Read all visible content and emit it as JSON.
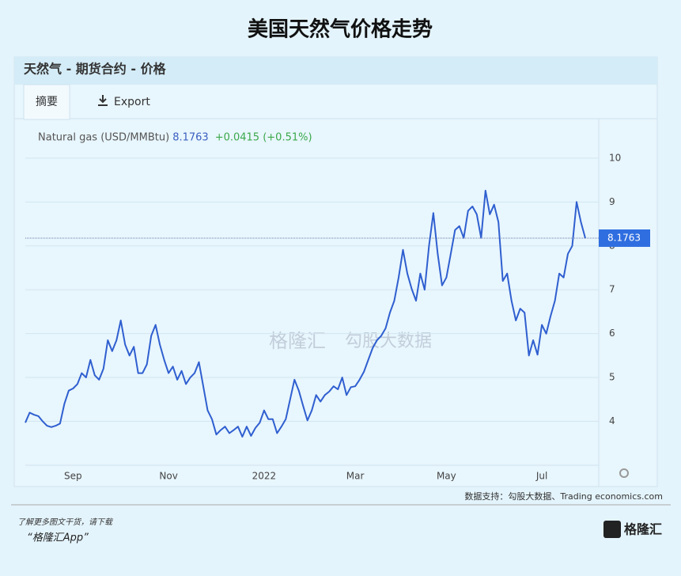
{
  "header": {
    "title": "美国天然气价格走势",
    "panel_title": "天然气 - 期货合约 - 价格",
    "tabs": [
      "摘要",
      "Export"
    ]
  },
  "chart_data": {
    "type": "line",
    "categories": [
      null,
      null,
      null,
      null,
      null,
      null,
      null,
      null,
      null,
      null,
      null,
      "Sep",
      null,
      null,
      null,
      null,
      null,
      null,
      null,
      null,
      null,
      null,
      null,
      null,
      null,
      null,
      null,
      null,
      null,
      null,
      null,
      null,
      null,
      "Nov",
      null,
      null,
      null,
      null,
      null,
      null,
      null,
      null,
      null,
      null,
      null,
      null,
      null,
      null,
      null,
      null,
      null,
      null,
      null,
      null,
      null,
      "2022",
      null,
      null,
      null,
      null,
      null,
      null,
      null,
      null,
      null,
      null,
      null,
      null,
      null,
      null,
      null,
      null,
      null,
      null,
      null,
      null,
      "Mar",
      null,
      null,
      null,
      null,
      null,
      null,
      null,
      null,
      null,
      null,
      null,
      null,
      null,
      null,
      null,
      null,
      null,
      null,
      null,
      null,
      "May",
      null,
      null,
      null,
      null,
      null,
      null,
      null,
      null,
      null,
      null,
      null,
      null,
      null,
      null,
      null,
      null,
      null,
      null,
      null,
      null,
      null,
      "Jul",
      null,
      null,
      null,
      null,
      null,
      null,
      null,
      null,
      null,
      null
    ],
    "series": [
      {
        "name": "Natural gas (USD/MMBtu)",
        "color": "#2f5fd0",
        "values": [
          3.97,
          4.2,
          4.15,
          4.12,
          4.0,
          3.9,
          3.87,
          3.9,
          3.95,
          4.4,
          4.7,
          4.75,
          4.85,
          5.1,
          5.0,
          5.4,
          5.05,
          4.95,
          5.2,
          5.85,
          5.6,
          5.85,
          6.3,
          5.75,
          5.5,
          5.7,
          5.1,
          5.1,
          5.3,
          5.95,
          6.2,
          5.75,
          5.4,
          5.1,
          5.25,
          4.95,
          5.15,
          4.85,
          5.0,
          5.1,
          5.35,
          4.8,
          4.25,
          4.05,
          3.7,
          3.8,
          3.88,
          3.73,
          3.8,
          3.88,
          3.65,
          3.88,
          3.67,
          3.85,
          3.97,
          4.25,
          4.05,
          4.05,
          3.73,
          3.88,
          4.05,
          4.5,
          4.95,
          4.7,
          4.35,
          4.02,
          4.25,
          4.6,
          4.45,
          4.6,
          4.68,
          4.8,
          4.73,
          5.0,
          4.6,
          4.78,
          4.8,
          4.95,
          5.13,
          5.4,
          5.67,
          5.85,
          5.95,
          6.12,
          6.48,
          6.75,
          7.28,
          7.91,
          7.37,
          7.02,
          6.75,
          7.37,
          7.0,
          8.0,
          8.75,
          7.82,
          7.1,
          7.28,
          7.82,
          8.36,
          8.45,
          8.18,
          8.8,
          8.9,
          8.72,
          8.18,
          9.26,
          8.72,
          8.94,
          8.54,
          7.2,
          7.37,
          6.75,
          6.3,
          6.57,
          6.48,
          5.5,
          5.85,
          5.52,
          6.2,
          6.0,
          6.4,
          6.75,
          7.37,
          7.28,
          7.82,
          8.0,
          9.0,
          8.54,
          8.1763
        ]
      }
    ],
    "current": {
      "value": 8.1763,
      "label": "8.1763",
      "change": "+0.0415 (+0.51%)"
    },
    "ylim": [
      3.0,
      10.9
    ],
    "yticks": [
      4,
      5,
      6,
      7,
      8,
      9,
      10
    ],
    "grid": true,
    "source": "数据支持：勾股大数据、Trading economics.com"
  },
  "watermark": [
    "格隆汇",
    "勾股大数据"
  ],
  "footer": {
    "prompt": "了解更多图文干货，请下载",
    "app": "“格隆汇App”",
    "logo": "格隆汇"
  }
}
